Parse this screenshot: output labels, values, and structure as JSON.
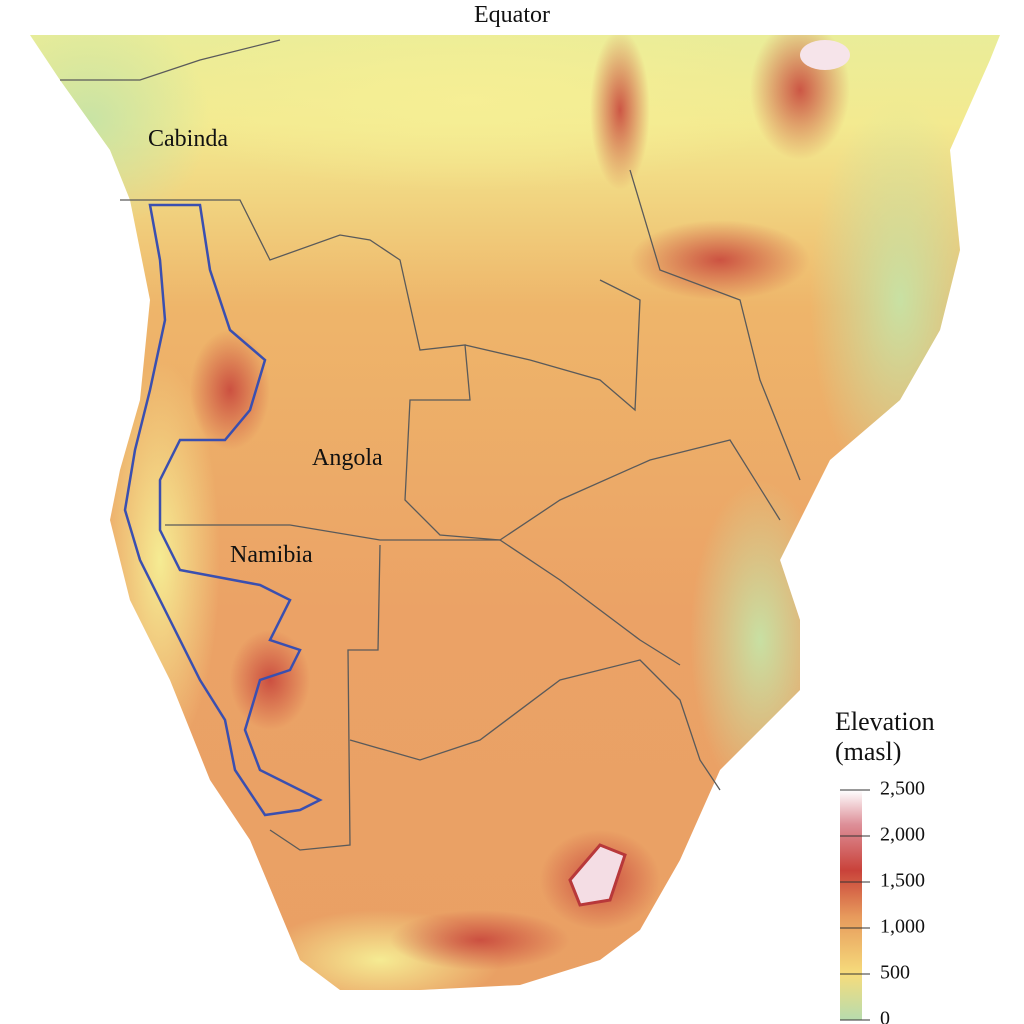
{
  "title": "Equator",
  "places": [
    "Cabinda",
    "Angola",
    "Namibia"
  ],
  "legend": {
    "title": [
      "Elevation",
      "(masl)"
    ],
    "lim": [
      0,
      2500
    ],
    "ticks": [
      {
        "value": 2500,
        "label": "2,500"
      },
      {
        "value": 2000,
        "label": "2,000"
      },
      {
        "value": 1500,
        "label": "1,500"
      },
      {
        "value": 1000,
        "label": "1,000"
      },
      500,
      0
    ]
  }
}
